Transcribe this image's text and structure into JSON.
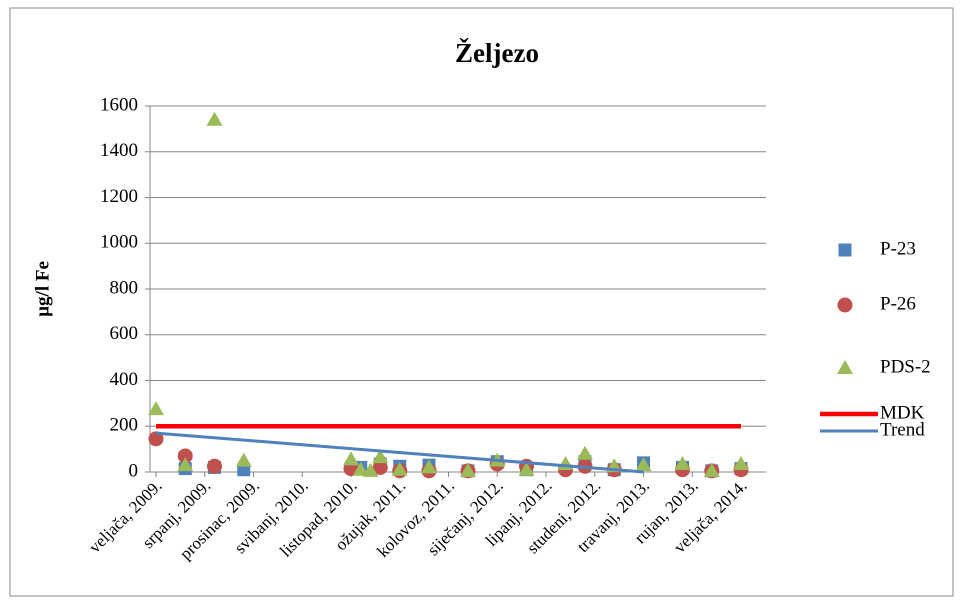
{
  "chart_data": {
    "type": "scatter",
    "title": "Željezo",
    "y_label": "µg/l Fe",
    "x": [
      "2009-02",
      "2009-05",
      "2009-08",
      "2009-11",
      "2010-10",
      "2010-11",
      "2010-12",
      "2011-01",
      "2011-03",
      "2011-06",
      "2011-10",
      "2012-01",
      "2012-04",
      "2012-08",
      "2012-10",
      "2013-01",
      "2013-04",
      "2013-08",
      "2013-11",
      "2014-02"
    ],
    "xlim": [
      "2009-02",
      "2014-02"
    ],
    "xticks": [
      {
        "value": "2009-02",
        "label": "veljača, 2009."
      },
      {
        "value": "2009-07",
        "label": "srpanj, 2009."
      },
      {
        "value": "2009-12",
        "label": "prosinac, 2009."
      },
      {
        "value": "2010-05",
        "label": "svibanj, 2010."
      },
      {
        "value": "2010-10",
        "label": "listopad, 2010."
      },
      {
        "value": "2011-03",
        "label": "ožujak, 2011."
      },
      {
        "value": "2011-08",
        "label": "kolovoz, 2011."
      },
      {
        "value": "2012-01",
        "label": "siječanj, 2012."
      },
      {
        "value": "2012-06",
        "label": "lipanj, 2012."
      },
      {
        "value": "2012-11",
        "label": "studeni, 2012."
      },
      {
        "value": "2013-04",
        "label": "travanj, 2013."
      },
      {
        "value": "2013-09",
        "label": "rujan, 2013."
      },
      {
        "value": "2014-02",
        "label": "veljača, 2014."
      }
    ],
    "ylim": [
      0,
      1600
    ],
    "yticks": [
      0,
      200,
      400,
      600,
      800,
      1000,
      1200,
      1400,
      1600
    ],
    "grid": true,
    "legend": "right",
    "series": [
      {
        "name": "P-23",
        "color": "#4f81bd",
        "marker": "square",
        "values": [
          null,
          15,
          20,
          10,
          null,
          20,
          null,
          35,
          25,
          30,
          5,
          45,
          10,
          null,
          45,
          10,
          40,
          20,
          5,
          15
        ]
      },
      {
        "name": "P-26",
        "color": "#c0504d",
        "marker": "circle",
        "values": [
          145,
          70,
          25,
          null,
          15,
          null,
          null,
          20,
          5,
          5,
          5,
          35,
          25,
          10,
          25,
          10,
          null,
          10,
          5,
          10
        ]
      },
      {
        "name": "PDS-2",
        "color": "#9bbb59",
        "marker": "triangle",
        "values": [
          275,
          30,
          1540,
          50,
          55,
          10,
          5,
          65,
          10,
          20,
          5,
          50,
          10,
          35,
          80,
          25,
          30,
          35,
          5,
          35
        ]
      },
      {
        "name": "MDK",
        "color": "#ff0000",
        "marker": "line",
        "x": [
          "2009-02",
          "2014-02"
        ],
        "values": [
          200,
          200
        ]
      },
      {
        "name": "Trend",
        "color": "#4f81bd",
        "marker": "line",
        "x": [
          "2009-02",
          "2013-04"
        ],
        "values": [
          170,
          0
        ]
      }
    ]
  }
}
